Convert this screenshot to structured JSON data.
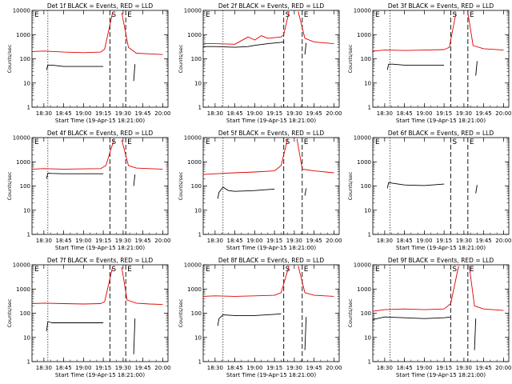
{
  "colors": {
    "events": "#000000",
    "lld": "#e00000"
  },
  "common": {
    "xlabel": "Start Time (19-Apr-15 18:21:00)",
    "ylabel": "Counts/sec",
    "x_ticks": [
      "18:30",
      "18:45",
      "19:00",
      "19:15",
      "19:30",
      "19:45",
      "20:00"
    ],
    "y_ticks": [
      "1",
      "10",
      "100",
      "1000",
      "10000"
    ],
    "ylim": [
      1,
      10000
    ],
    "y_scale": "log"
  },
  "chart_data": [
    {
      "type": "line",
      "title": "Det 1f BLACK = Events, RED = LLD",
      "markers": [
        "E",
        "S",
        "E"
      ],
      "series": [
        {
          "name": "Events",
          "color": "#000000",
          "segments": [
            {
              "x": [
                "18:32",
                "18:33",
                "18:36",
                "18:45",
                "19:00",
                "19:15"
              ],
              "y": [
                35,
                55,
                55,
                48,
                48,
                48
              ]
            },
            {
              "x": [
                "19:38",
                "19:39"
              ],
              "y": [
                12,
                60
              ]
            }
          ]
        },
        {
          "name": "LLD",
          "color": "#e00000",
          "segments": [
            {
              "x": [
                "18:21",
                "18:30",
                "18:45",
                "19:00",
                "19:13",
                "19:16",
                "19:22"
              ],
              "y": [
                200,
                210,
                190,
                180,
                190,
                250,
                8000
              ]
            },
            {
              "x": [
                "19:29",
                "19:34",
                "19:40",
                "19:50",
                "20:00"
              ],
              "y": [
                8000,
                300,
                170,
                160,
                150
              ]
            }
          ]
        }
      ]
    },
    {
      "type": "line",
      "title": "Det 2f BLACK = Events, RED = LLD",
      "markers": [
        "E",
        "S",
        "E"
      ],
      "series": [
        {
          "name": "Events",
          "color": "#000000",
          "segments": [
            {
              "x": [
                "18:21",
                "18:30",
                "18:45",
                "18:55",
                "19:00",
                "19:10",
                "19:20",
                "19:22"
              ],
              "y": [
                320,
                320,
                300,
                320,
                360,
                420,
                480,
                500
              ]
            },
            {
              "x": [
                "19:38",
                "19:39"
              ],
              "y": [
                150,
                450
              ]
            }
          ]
        },
        {
          "name": "LLD",
          "color": "#e00000",
          "segments": [
            {
              "x": [
                "18:21",
                "18:30",
                "18:45",
                "18:55",
                "19:00",
                "19:05",
                "19:10",
                "19:20",
                "19:22",
                "19:26"
              ],
              "y": [
                420,
                420,
                400,
                800,
                600,
                900,
                700,
                800,
                1000,
                9000
              ]
            },
            {
              "x": [
                "19:33",
                "19:38",
                "19:45",
                "20:00"
              ],
              "y": [
                9000,
                700,
                500,
                420
              ]
            }
          ]
        }
      ]
    },
    {
      "type": "line",
      "title": "Det 3f BLACK = Events, RED = LLD",
      "markers": [
        "E",
        "S",
        "E"
      ],
      "series": [
        {
          "name": "Events",
          "color": "#000000",
          "segments": [
            {
              "x": [
                "18:32",
                "18:33",
                "18:36",
                "18:45",
                "19:00",
                "19:15"
              ],
              "y": [
                35,
                60,
                60,
                55,
                55,
                55
              ]
            },
            {
              "x": [
                "19:39",
                "19:40"
              ],
              "y": [
                20,
                80
              ]
            }
          ]
        },
        {
          "name": "LLD",
          "color": "#e00000",
          "segments": [
            {
              "x": [
                "18:21",
                "18:30",
                "18:45",
                "19:00",
                "19:15",
                "19:19",
                "19:24"
              ],
              "y": [
                210,
                230,
                220,
                230,
                240,
                300,
                8000
              ]
            },
            {
              "x": [
                "19:33",
                "19:37",
                "19:45",
                "20:00"
              ],
              "y": [
                8000,
                350,
                260,
                230
              ]
            }
          ]
        }
      ]
    },
    {
      "type": "line",
      "title": "Det 4f BLACK = Events, RED = LLD",
      "markers": [
        "E",
        "S",
        "E"
      ],
      "series": [
        {
          "name": "Events",
          "color": "#000000",
          "segments": [
            {
              "x": [
                "18:32",
                "18:33",
                "18:36",
                "18:45",
                "19:00",
                "19:15"
              ],
              "y": [
                200,
                340,
                330,
                320,
                320,
                320
              ]
            },
            {
              "x": [
                "19:38",
                "19:39"
              ],
              "y": [
                100,
                300
              ]
            }
          ]
        },
        {
          "name": "LLD",
          "color": "#e00000",
          "segments": [
            {
              "x": [
                "18:21",
                "18:30",
                "18:45",
                "19:00",
                "19:13",
                "19:17",
                "19:23"
              ],
              "y": [
                500,
                520,
                500,
                510,
                520,
                700,
                8000
              ]
            },
            {
              "x": [
                "19:29",
                "19:34",
                "19:40",
                "19:50",
                "20:00"
              ],
              "y": [
                8000,
                700,
                550,
                520,
                500
              ]
            }
          ]
        }
      ]
    },
    {
      "type": "line",
      "title": "Det 5f BLACK = Events, RED = LLD",
      "markers": [
        "E",
        "S",
        "E"
      ],
      "series": [
        {
          "name": "Events",
          "color": "#000000",
          "segments": [
            {
              "x": [
                "18:32",
                "18:33",
                "18:36",
                "18:40",
                "18:45",
                "19:00",
                "19:15"
              ],
              "y": [
                30,
                55,
                90,
                65,
                60,
                65,
                75
              ]
            },
            {
              "x": [
                "19:38",
                "19:39"
              ],
              "y": [
                40,
                80
              ]
            }
          ]
        },
        {
          "name": "LLD",
          "color": "#e00000",
          "segments": [
            {
              "x": [
                "18:21",
                "18:30",
                "18:45",
                "19:00",
                "19:15",
                "19:20",
                "19:25"
              ],
              "y": [
                300,
                320,
                350,
                380,
                420,
                700,
                9000
              ]
            },
            {
              "x": [
                "19:32",
                "19:36",
                "19:45",
                "20:00"
              ],
              "y": [
                9000,
                500,
                420,
                350
              ]
            }
          ]
        }
      ]
    },
    {
      "type": "line",
      "title": "Det 6f BLACK = Events, RED = LLD",
      "markers": [
        "E",
        "S",
        "E"
      ],
      "series": [
        {
          "name": "Events",
          "color": "#000000",
          "segments": [
            {
              "x": [
                "18:32",
                "18:33",
                "18:36",
                "18:45",
                "19:00",
                "19:15"
              ],
              "y": [
                80,
                140,
                130,
                110,
                105,
                120
              ]
            },
            {
              "x": [
                "19:39",
                "19:40"
              ],
              "y": [
                50,
                110
              ]
            }
          ]
        }
      ]
    },
    {
      "type": "line",
      "title": "Det 7f BLACK = Events, RED = LLD",
      "markers": [
        "E",
        "S",
        "E"
      ],
      "series": [
        {
          "name": "Events",
          "color": "#000000",
          "segments": [
            {
              "x": [
                "18:32",
                "18:33",
                "18:36",
                "18:45",
                "19:00",
                "19:15"
              ],
              "y": [
                18,
                45,
                40,
                40,
                40,
                40
              ]
            },
            {
              "x": [
                "19:38",
                "19:39"
              ],
              "y": [
                2,
                60
              ]
            }
          ]
        },
        {
          "name": "LLD",
          "color": "#e00000",
          "segments": [
            {
              "x": [
                "18:21",
                "18:30",
                "18:45",
                "19:00",
                "19:13",
                "19:16",
                "19:22"
              ],
              "y": [
                250,
                260,
                250,
                240,
                250,
                300,
                8000
              ]
            },
            {
              "x": [
                "19:29",
                "19:33",
                "19:40",
                "19:50",
                "20:00"
              ],
              "y": [
                8000,
                350,
                260,
                240,
                230
              ]
            }
          ]
        }
      ]
    },
    {
      "type": "line",
      "title": "Det 8f BLACK = Events, RED = LLD",
      "markers": [
        "E",
        "S",
        "E"
      ],
      "series": [
        {
          "name": "Events",
          "color": "#000000",
          "segments": [
            {
              "x": [
                "18:32",
                "18:33",
                "18:36",
                "18:45",
                "19:00",
                "19:15",
                "19:20"
              ],
              "y": [
                30,
                60,
                85,
                80,
                80,
                90,
                95
              ]
            },
            {
              "x": [
                "19:38",
                "19:39"
              ],
              "y": [
                3,
                70
              ]
            }
          ]
        },
        {
          "name": "LLD",
          "color": "#e00000",
          "segments": [
            {
              "x": [
                "18:21",
                "18:30",
                "18:45",
                "19:00",
                "19:15",
                "19:20",
                "19:26"
              ],
              "y": [
                500,
                520,
                500,
                520,
                550,
                700,
                9000
              ]
            },
            {
              "x": [
                "19:33",
                "19:38",
                "19:45",
                "20:00"
              ],
              "y": [
                9000,
                700,
                550,
                500
              ]
            }
          ]
        }
      ]
    },
    {
      "type": "line",
      "title": "Det 9f BLACK = Events, RED = LLD",
      "markers": [
        "E",
        "S",
        "E"
      ],
      "series": [
        {
          "name": "Events",
          "color": "#000000",
          "segments": [
            {
              "x": [
                "18:21",
                "18:30",
                "18:45",
                "19:00",
                "19:15",
                "19:20"
              ],
              "y": [
                55,
                70,
                65,
                60,
                65,
                70
              ]
            },
            {
              "x": [
                "19:38",
                "19:39"
              ],
              "y": [
                3,
                60
              ]
            }
          ]
        },
        {
          "name": "LLD",
          "color": "#e00000",
          "segments": [
            {
              "x": [
                "18:21",
                "18:30",
                "18:45",
                "19:00",
                "19:15",
                "19:20",
                "19:26"
              ],
              "y": [
                120,
                140,
                150,
                140,
                150,
                250,
                9000
              ]
            },
            {
              "x": [
                "19:34",
                "19:38",
                "19:45",
                "20:00"
              ],
              "y": [
                9000,
                200,
                150,
                130
              ]
            }
          ]
        }
      ]
    }
  ]
}
